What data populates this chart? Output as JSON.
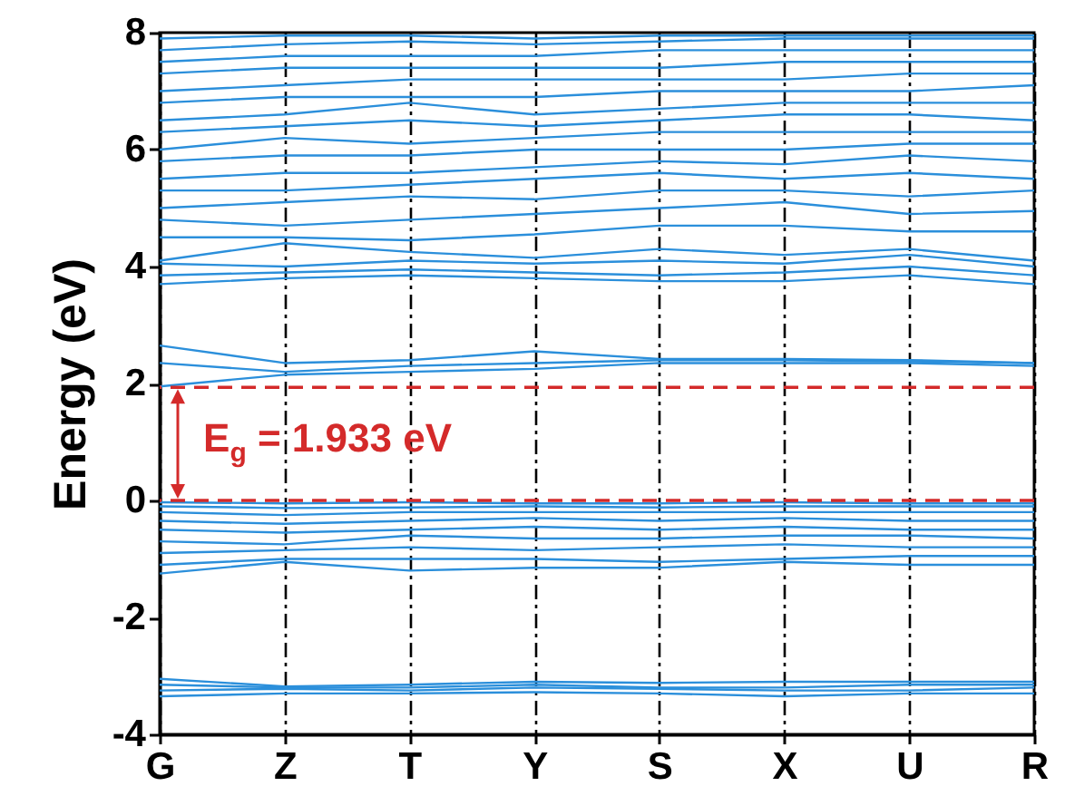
{
  "chart_data": {
    "type": "line",
    "ylabel": "Energy (eV)",
    "annotations": [
      "E$_{g}$ = 1.933 eV"
    ],
    "categories": [
      "G",
      "Z",
      "T",
      "Y",
      "S",
      "X",
      "U",
      "R"
    ],
    "ylim": [
      -4,
      8
    ],
    "yticks": [
      -4,
      -2,
      0,
      2,
      4,
      6,
      8
    ],
    "grid": "x",
    "marker": "none",
    "line_style": "solid",
    "ref_lines": [
      {
        "axis": "y",
        "value": 0,
        "color": "#d42a2a",
        "line_style": "dashed"
      },
      {
        "axis": "y",
        "value": 1.933,
        "color": "#d42a2a",
        "line_style": "dashed"
      }
    ],
    "series": [
      {
        "color": "#2b8fdb",
        "values": [
          -3.35,
          -3.3,
          -3.3,
          -3.28,
          -3.3,
          -3.35,
          -3.3,
          -3.3
        ]
      },
      {
        "color": "#2b8fdb",
        "values": [
          -3.25,
          -3.22,
          -3.25,
          -3.2,
          -3.22,
          -3.25,
          -3.25,
          -3.2
        ]
      },
      {
        "color": "#2b8fdb",
        "values": [
          -3.15,
          -3.2,
          -3.2,
          -3.15,
          -3.2,
          -3.2,
          -3.15,
          -3.15
        ]
      },
      {
        "color": "#2b8fdb",
        "values": [
          -3.05,
          -3.18,
          -3.15,
          -3.1,
          -3.12,
          -3.1,
          -3.1,
          -3.1
        ]
      },
      {
        "color": "#2b8fdb",
        "values": [
          -1.25,
          -1.05,
          -1.2,
          -1.15,
          -1.15,
          -1.05,
          -1.1,
          -1.1
        ]
      },
      {
        "color": "#2b8fdb",
        "values": [
          -1.1,
          -1.0,
          -1.0,
          -1.0,
          -1.05,
          -1.0,
          -0.95,
          -0.95
        ]
      },
      {
        "color": "#2b8fdb",
        "values": [
          -0.9,
          -0.85,
          -0.8,
          -0.85,
          -0.8,
          -0.75,
          -0.8,
          -0.8
        ]
      },
      {
        "color": "#2b8fdb",
        "values": [
          -0.7,
          -0.75,
          -0.6,
          -0.65,
          -0.65,
          -0.6,
          -0.6,
          -0.65
        ]
      },
      {
        "color": "#2b8fdb",
        "values": [
          -0.5,
          -0.55,
          -0.5,
          -0.45,
          -0.5,
          -0.45,
          -0.5,
          -0.5
        ]
      },
      {
        "color": "#2b8fdb",
        "values": [
          -0.35,
          -0.4,
          -0.35,
          -0.3,
          -0.35,
          -0.3,
          -0.35,
          -0.35
        ]
      },
      {
        "color": "#2b8fdb",
        "values": [
          -0.2,
          -0.25,
          -0.2,
          -0.2,
          -0.2,
          -0.2,
          -0.2,
          -0.2
        ]
      },
      {
        "color": "#2b8fdb",
        "values": [
          -0.1,
          -0.13,
          -0.12,
          -0.1,
          -0.12,
          -0.1,
          -0.1,
          -0.1
        ]
      },
      {
        "color": "#2b8fdb",
        "values": [
          -0.03,
          -0.05,
          -0.03,
          -0.05,
          -0.05,
          -0.03,
          -0.05,
          -0.05
        ]
      },
      {
        "color": "#2b8fdb",
        "values": [
          1.95,
          2.15,
          2.2,
          2.25,
          2.35,
          2.35,
          2.35,
          2.3
        ]
      },
      {
        "color": "#2b8fdb",
        "values": [
          2.35,
          2.2,
          2.3,
          2.35,
          2.4,
          2.4,
          2.38,
          2.35
        ]
      },
      {
        "color": "#2b8fdb",
        "values": [
          2.65,
          2.35,
          2.4,
          2.55,
          2.42,
          2.42,
          2.4,
          2.35
        ]
      },
      {
        "color": "#2b8fdb",
        "values": [
          3.7,
          3.8,
          3.85,
          3.8,
          3.75,
          3.75,
          3.85,
          3.7
        ]
      },
      {
        "color": "#2b8fdb",
        "values": [
          3.85,
          3.9,
          3.95,
          3.9,
          3.85,
          3.9,
          4.0,
          3.85
        ]
      },
      {
        "color": "#2b8fdb",
        "values": [
          4.05,
          4.0,
          4.1,
          4.05,
          4.1,
          4.05,
          4.2,
          4.0
        ]
      },
      {
        "color": "#2b8fdb",
        "values": [
          4.1,
          4.4,
          4.25,
          4.15,
          4.3,
          4.2,
          4.3,
          4.1
        ]
      },
      {
        "color": "#2b8fdb",
        "values": [
          4.5,
          4.5,
          4.45,
          4.55,
          4.7,
          4.7,
          4.6,
          4.6
        ]
      },
      {
        "color": "#2b8fdb",
        "values": [
          4.8,
          4.7,
          4.8,
          4.9,
          5.0,
          5.1,
          4.9,
          4.95
        ]
      },
      {
        "color": "#2b8fdb",
        "values": [
          5.0,
          5.1,
          5.2,
          5.15,
          5.3,
          5.3,
          5.2,
          5.3
        ]
      },
      {
        "color": "#2b8fdb",
        "values": [
          5.3,
          5.3,
          5.4,
          5.5,
          5.6,
          5.5,
          5.6,
          5.5
        ]
      },
      {
        "color": "#2b8fdb",
        "values": [
          5.5,
          5.6,
          5.6,
          5.7,
          5.8,
          5.75,
          5.9,
          5.8
        ]
      },
      {
        "color": "#2b8fdb",
        "values": [
          5.8,
          5.9,
          5.9,
          6.0,
          6.0,
          6.0,
          6.1,
          6.1
        ]
      },
      {
        "color": "#2b8fdb",
        "values": [
          6.0,
          6.2,
          6.1,
          6.2,
          6.3,
          6.3,
          6.3,
          6.3
        ]
      },
      {
        "color": "#2b8fdb",
        "values": [
          6.3,
          6.4,
          6.5,
          6.4,
          6.5,
          6.6,
          6.6,
          6.5
        ]
      },
      {
        "color": "#2b8fdb",
        "values": [
          6.5,
          6.6,
          6.8,
          6.6,
          6.7,
          6.8,
          6.8,
          6.8
        ]
      },
      {
        "color": "#2b8fdb",
        "values": [
          6.8,
          6.9,
          6.9,
          6.9,
          7.0,
          7.0,
          7.0,
          7.1
        ]
      },
      {
        "color": "#2b8fdb",
        "values": [
          7.0,
          7.1,
          7.2,
          7.2,
          7.2,
          7.2,
          7.3,
          7.3
        ]
      },
      {
        "color": "#2b8fdb",
        "values": [
          7.3,
          7.4,
          7.4,
          7.4,
          7.4,
          7.5,
          7.5,
          7.5
        ]
      },
      {
        "color": "#2b8fdb",
        "values": [
          7.5,
          7.6,
          7.6,
          7.6,
          7.7,
          7.7,
          7.7,
          7.7
        ]
      },
      {
        "color": "#2b8fdb",
        "values": [
          7.7,
          7.8,
          7.85,
          7.8,
          7.85,
          7.9,
          7.9,
          7.9
        ]
      },
      {
        "color": "#2b8fdb",
        "values": [
          7.9,
          7.95,
          7.95,
          7.9,
          7.95,
          7.95,
          7.95,
          7.95
        ]
      }
    ]
  }
}
